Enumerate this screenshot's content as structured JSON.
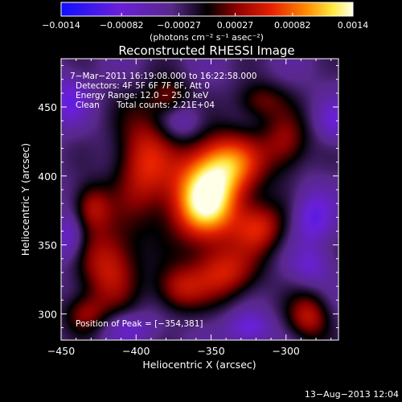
{
  "chart_data": {
    "type": "heatmap",
    "title": "Reconstructed RHESSI Image",
    "xlabel": "Heliocentric X (arcsec)",
    "ylabel": "Heliocentric Y (arcsec)",
    "xlim": [
      -450,
      -265
    ],
    "ylim": [
      281,
      485
    ],
    "x_ticks": [
      -450,
      -400,
      -350,
      -300
    ],
    "x_tick_labels": [
      "−450",
      "−400",
      "−350",
      "−300"
    ],
    "y_ticks": [
      300,
      350,
      400,
      450
    ],
    "y_tick_labels": [
      "300",
      "350",
      "400",
      "450"
    ],
    "colorbar": {
      "range": [
        -0.0014,
        0.0014
      ],
      "ticks": [
        -0.0014,
        -0.00082,
        -0.00027,
        0.00027,
        0.00082,
        0.0014
      ],
      "tick_labels": [
        "−0.0014",
        "−0.00082",
        "−0.00027",
        "0.00027",
        "0.00082",
        "0.0014"
      ],
      "unit_label": "(photons cm⁻² s⁻¹ asec⁻²)"
    },
    "annotations": {
      "time_range": "7−Mar−2011 16:19:08.000 to 16:22:58.000",
      "detectors": "Detectors: 4F 5F 6F 7F 8F, Att 0",
      "energy_range": "Energy Range: 12.0 − 25.0 keV",
      "method": "Clean",
      "total_counts": "Total counts: 2.21E+04",
      "peak_position": "Position of Peak = [−354,381]"
    },
    "peak": {
      "x": -354,
      "y": 381,
      "value": 0.0014
    },
    "sources": [
      {
        "x": -354,
        "y": 381,
        "sx": 16,
        "sy": 20,
        "value": 0.00135
      },
      {
        "x": -340,
        "y": 410,
        "sx": 18,
        "sy": 16,
        "value": 0.0008
      },
      {
        "x": -395,
        "y": 410,
        "sx": 14,
        "sy": 28,
        "value": 0.00055
      },
      {
        "x": -418,
        "y": 335,
        "sx": 14,
        "sy": 22,
        "value": 0.00052
      },
      {
        "x": -430,
        "y": 378,
        "sx": 9,
        "sy": 12,
        "value": 0.00035
      },
      {
        "x": -342,
        "y": 330,
        "sx": 16,
        "sy": 14,
        "value": 0.0005
      },
      {
        "x": -318,
        "y": 363,
        "sx": 12,
        "sy": 13,
        "value": 0.00048
      },
      {
        "x": -300,
        "y": 425,
        "sx": 11,
        "sy": 15,
        "value": 0.0003
      },
      {
        "x": -285,
        "y": 298,
        "sx": 10,
        "sy": 12,
        "value": 0.00042
      },
      {
        "x": -372,
        "y": 318,
        "sx": 12,
        "sy": 12,
        "value": 0.00035
      },
      {
        "x": -435,
        "y": 300,
        "sx": 10,
        "sy": 10,
        "value": 0.00025
      },
      {
        "x": -318,
        "y": 455,
        "sx": 12,
        "sy": 10,
        "value": 0.0002
      },
      {
        "x": -378,
        "y": 458,
        "sx": 10,
        "sy": 10,
        "value": 0.0002
      },
      {
        "x": -445,
        "y": 455,
        "sx": 8,
        "sy": 12,
        "value": -0.0005
      },
      {
        "x": -445,
        "y": 355,
        "sx": 7,
        "sy": 12,
        "value": -0.0005
      },
      {
        "x": -282,
        "y": 370,
        "sx": 9,
        "sy": 14,
        "value": -0.0006
      },
      {
        "x": -283,
        "y": 335,
        "sx": 9,
        "sy": 9,
        "value": -0.0004
      },
      {
        "x": -325,
        "y": 290,
        "sx": 10,
        "sy": 8,
        "value": -0.00055
      },
      {
        "x": -405,
        "y": 290,
        "sx": 12,
        "sy": 8,
        "value": -0.0004
      },
      {
        "x": -268,
        "y": 440,
        "sx": 8,
        "sy": 10,
        "value": -0.0004
      },
      {
        "x": -370,
        "y": 440,
        "sx": 10,
        "sy": 10,
        "value": -0.00035
      }
    ]
  },
  "footer": {
    "timestamp": "13−Aug−2013 12:04"
  }
}
